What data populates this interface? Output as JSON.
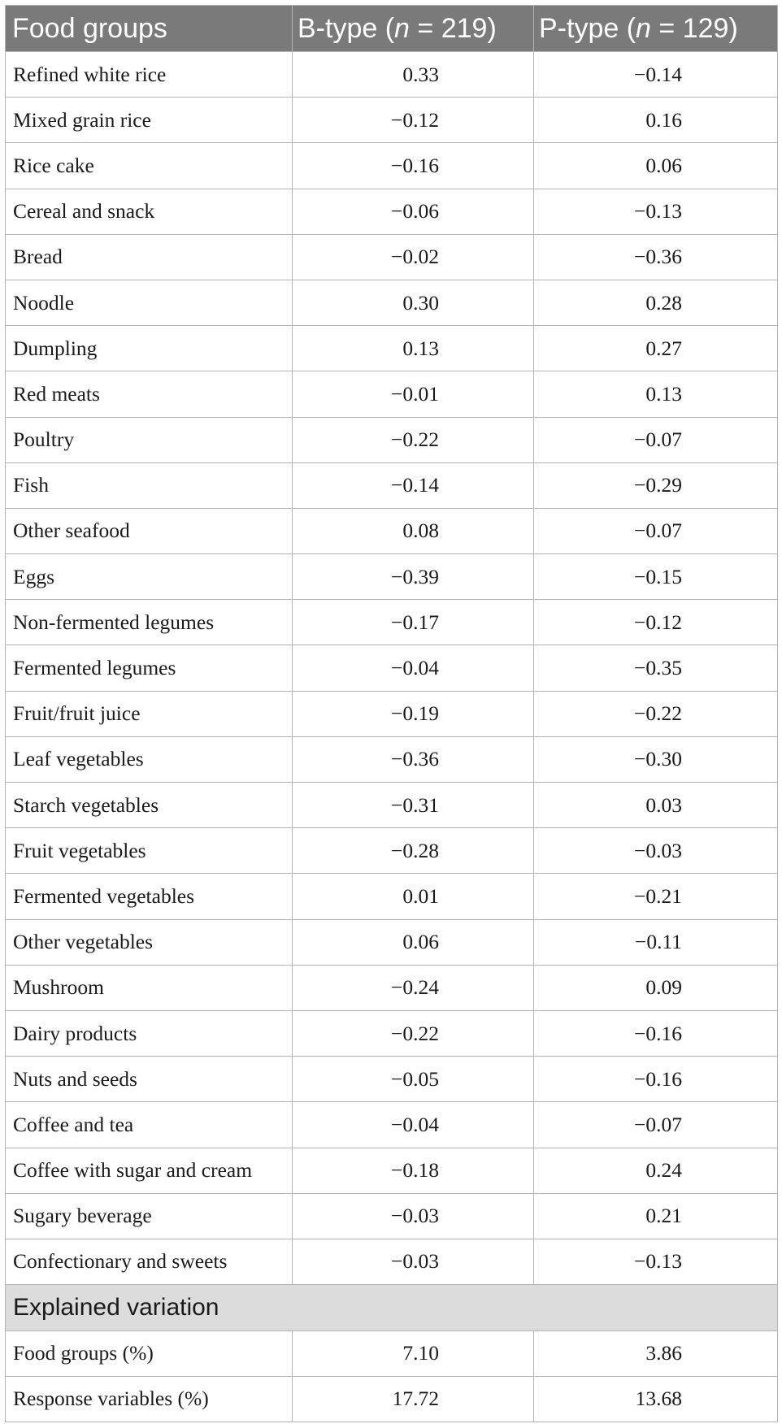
{
  "table": {
    "headers": {
      "food_groups": "Food groups",
      "b_type_prefix": "B-type (",
      "b_type_n": "n",
      "b_type_suffix": " = 219)",
      "p_type_prefix": "P-type (",
      "p_type_n": "n",
      "p_type_suffix": " = 129)"
    },
    "rows": [
      {
        "label": "Refined white rice",
        "b": "0.33",
        "p": "−0.14"
      },
      {
        "label": "Mixed grain rice",
        "b": "−0.12",
        "p": "0.16"
      },
      {
        "label": "Rice cake",
        "b": "−0.16",
        "p": "0.06"
      },
      {
        "label": "Cereal and snack",
        "b": "−0.06",
        "p": "−0.13"
      },
      {
        "label": "Bread",
        "b": "−0.02",
        "p": "−0.36"
      },
      {
        "label": "Noodle",
        "b": "0.30",
        "p": "0.28"
      },
      {
        "label": "Dumpling",
        "b": "0.13",
        "p": "0.27"
      },
      {
        "label": "Red meats",
        "b": "−0.01",
        "p": "0.13"
      },
      {
        "label": "Poultry",
        "b": "−0.22",
        "p": "−0.07"
      },
      {
        "label": "Fish",
        "b": "−0.14",
        "p": "−0.29"
      },
      {
        "label": "Other seafood",
        "b": "0.08",
        "p": "−0.07"
      },
      {
        "label": "Eggs",
        "b": "−0.39",
        "p": "−0.15"
      },
      {
        "label": "Non-fermented legumes",
        "b": "−0.17",
        "p": "−0.12"
      },
      {
        "label": "Fermented legumes",
        "b": "−0.04",
        "p": "−0.35"
      },
      {
        "label": "Fruit/fruit juice",
        "b": "−0.19",
        "p": "−0.22"
      },
      {
        "label": "Leaf vegetables",
        "b": "−0.36",
        "p": "−0.30"
      },
      {
        "label": "Starch vegetables",
        "b": "−0.31",
        "p": "0.03"
      },
      {
        "label": "Fruit vegetables",
        "b": "−0.28",
        "p": "−0.03"
      },
      {
        "label": "Fermented vegetables",
        "b": "0.01",
        "p": "−0.21"
      },
      {
        "label": "Other vegetables",
        "b": "0.06",
        "p": "−0.11"
      },
      {
        "label": "Mushroom",
        "b": "−0.24",
        "p": "0.09"
      },
      {
        "label": "Dairy products",
        "b": "−0.22",
        "p": "−0.16"
      },
      {
        "label": "Nuts and seeds",
        "b": "−0.05",
        "p": "−0.16"
      },
      {
        "label": "Coffee and tea",
        "b": "−0.04",
        "p": "−0.07"
      },
      {
        "label": "Coffee with sugar and cream",
        "b": "−0.18",
        "p": "0.24"
      },
      {
        "label": "Sugary beverage",
        "b": "−0.03",
        "p": "0.21"
      },
      {
        "label": "Confectionary and sweets",
        "b": "−0.03",
        "p": "−0.13"
      }
    ],
    "section_title": "Explained variation",
    "summary_rows": [
      {
        "label": "Food groups (%)",
        "b": "7.10",
        "p": "3.86"
      },
      {
        "label": "Response variables (%)",
        "b": "17.72",
        "p": "13.68"
      }
    ]
  },
  "colors": {
    "header_background": "#7a7a7a",
    "section_background": "#dcdcdc",
    "border": "#b3b3b3"
  }
}
